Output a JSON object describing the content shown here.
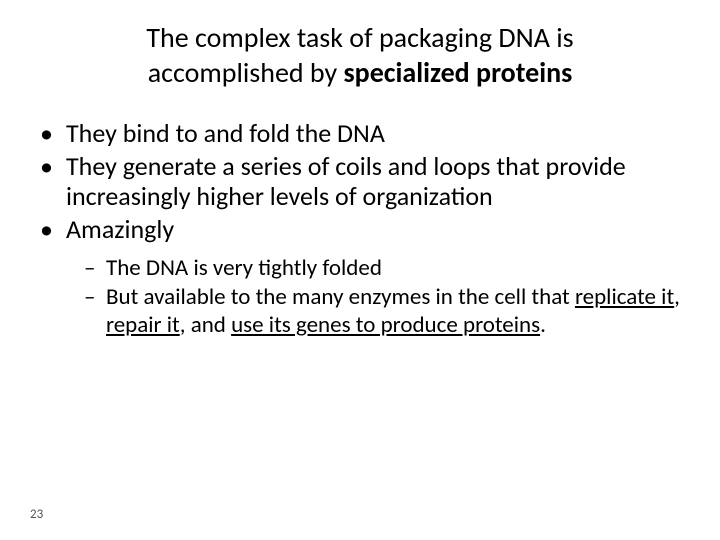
{
  "title_line1": "The complex task of packaging DNA is",
  "title_line2_pre": "accomplished by ",
  "title_line2_bold": "specialized proteins",
  "bullets": {
    "b1": "They bind to and fold the DNA",
    "b2": "They generate a series of coils and loops that provide increasingly higher levels of organization",
    "b3": "Amazingly",
    "sub1": "The DNA is very tightly folded",
    "sub2_pre": "But available to the many enzymes in the cell that ",
    "sub2_u1": "replicate it",
    "sub2_mid1": ", ",
    "sub2_u2": "repair it",
    "sub2_mid2": ", and ",
    "sub2_u3": "use its genes to produce proteins",
    "sub2_post": "."
  },
  "page_number": "23",
  "colors": {
    "bg": "#ffffff",
    "text": "#000000"
  },
  "typography": {
    "title_fontsize": 28,
    "l1_fontsize": 26,
    "l2_fontsize": 23,
    "page_num_fontsize": 13,
    "font_family": "Calibri"
  }
}
